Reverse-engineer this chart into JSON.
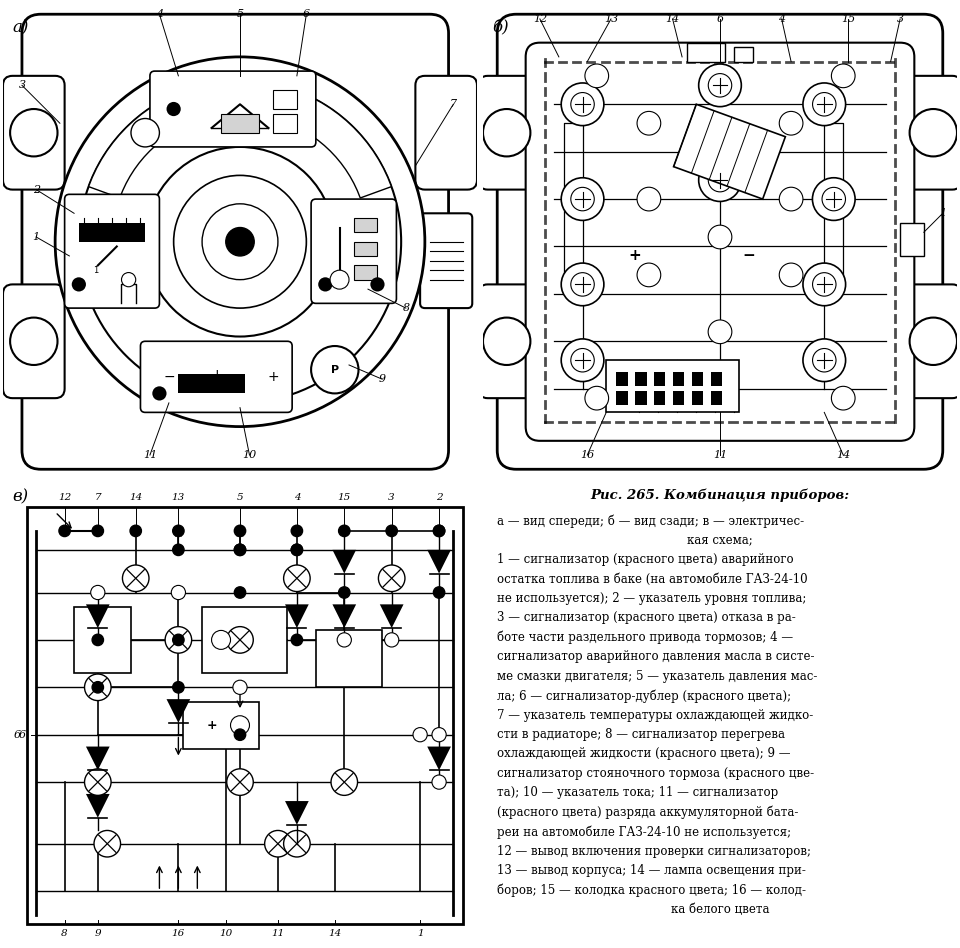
{
  "figsize": [
    9.6,
    9.48
  ],
  "dpi": 100,
  "bg": "#ffffff",
  "caption_title": "Рис. 265. Комбинация приборов:",
  "caption_body": [
    {
      "text": "а — вид спереди; б — вид сзади; в — электричес-",
      "indent": false
    },
    {
      "text": "кая схема;",
      "indent": true
    },
    {
      "text": "1 — сигнализатор (красного цвета) аварийного",
      "indent": false
    },
    {
      "text": "остатка топлива в баке (на автомобиле ГАЗ-24-10",
      "indent": false
    },
    {
      "text": "не используется); 2 — указатель уровня топлива;",
      "indent": false
    },
    {
      "text": "3 — сигнализатор (красного цвета) отказа в ра-",
      "indent": false
    },
    {
      "text": "боте части раздельного привода тормозов; 4 —",
      "indent": false
    },
    {
      "text": "сигнализатор аварийного давления масла в систе-",
      "indent": false
    },
    {
      "text": "ме смазки двигателя; 5 — указатель давления мас-",
      "indent": false
    },
    {
      "text": "ла; 6 — сигнализатор-дублер (красного цвета);",
      "indent": false
    },
    {
      "text": "7 — указатель температуры охлаждающей жидко-",
      "indent": false
    },
    {
      "text": "сти в радиаторе; 8 — сигнализатор перегрева",
      "indent": false
    },
    {
      "text": "охлаждающей жидкости (красного цвета); 9 —",
      "indent": false
    },
    {
      "text": "сигнализатор стояночного тормоза (красного цве-",
      "indent": false
    },
    {
      "text": "та); 10 — указатель тока; 11 — сигнализатор",
      "indent": false
    },
    {
      "text": "(красного цвета) разряда аккумуляторной бата-",
      "indent": false
    },
    {
      "text": "реи на автомобиле ГАЗ-24-10 не используется;",
      "indent": false
    },
    {
      "text": "12 — вывод включения проверки сигнализаторов;",
      "indent": false
    },
    {
      "text": "13 — вывод корпуса; 14 — лампа освещения при-",
      "indent": false
    },
    {
      "text": "боров; 15 — колодка красного цвета; 16 — колод-",
      "indent": false
    },
    {
      "text": "ка белого цвета",
      "indent": true
    }
  ]
}
